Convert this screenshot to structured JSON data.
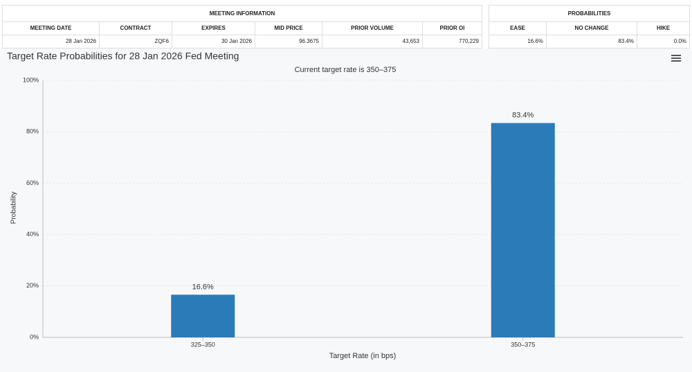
{
  "meeting_info": {
    "title": "MEETING INFORMATION",
    "headers": [
      "MEETING DATE",
      "CONTRACT",
      "EXPIRES",
      "MID PRICE",
      "PRIOR VOLUME",
      "PRIOR OI"
    ],
    "row": [
      "28 Jan 2026",
      "ZQF6",
      "30 Jan 2026",
      "96.3675",
      "43,653",
      "770,229"
    ]
  },
  "probabilities": {
    "title": "PROBABILITIES",
    "headers": [
      "EASE",
      "NO CHANGE",
      "HIKE"
    ],
    "row": [
      "16.6%",
      "83.4%",
      "0.0%"
    ]
  },
  "chart_data": {
    "type": "bar",
    "title": "Target Rate Probabilities for 28 Jan 2026 Fed Meeting",
    "subtitle": "Current target rate is 350–375",
    "x_label": "Target Rate (in bps)",
    "y_label": "Probability",
    "categories": [
      "325–350",
      "350–375"
    ],
    "values": [
      16.6,
      83.4
    ],
    "value_labels": [
      "16.6%",
      "83.4%"
    ],
    "color": "#2b7bb9",
    "ylim": [
      0,
      100
    ],
    "yticks": [
      {
        "value": 0,
        "label": "0%"
      },
      {
        "value": 20,
        "label": "20%"
      },
      {
        "value": 40,
        "label": "40%"
      },
      {
        "value": 60,
        "label": "60%"
      },
      {
        "value": 80,
        "label": "80%"
      },
      {
        "value": 100,
        "label": "100%"
      }
    ],
    "grid": true
  }
}
